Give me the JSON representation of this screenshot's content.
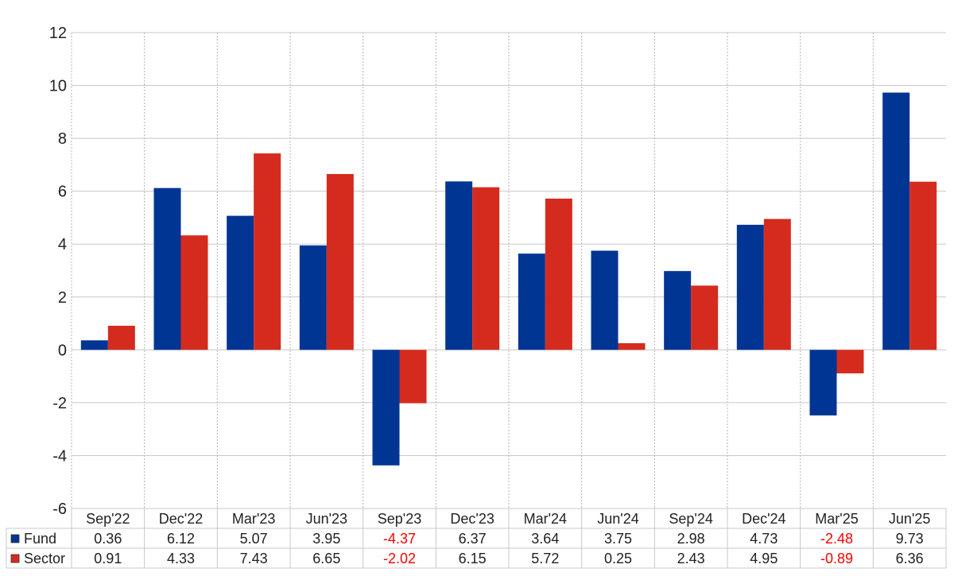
{
  "chart_data": {
    "type": "bar",
    "title": "",
    "xlabel": "",
    "ylabel": "",
    "ylim": [
      -6,
      12
    ],
    "y_ticks": [
      -6,
      -4,
      -2,
      0,
      2,
      4,
      6,
      8,
      10,
      12
    ],
    "grid": true,
    "legend": "table-left",
    "categories": [
      "Sep'22",
      "Dec'22",
      "Mar'23",
      "Jun'23",
      "Sep'23",
      "Dec'23",
      "Mar'24",
      "Jun'24",
      "Sep'24",
      "Dec'24",
      "Mar'25",
      "Jun'25"
    ],
    "series": [
      {
        "name": "Fund",
        "color": "#003594",
        "values": [
          0.36,
          6.12,
          5.07,
          3.95,
          -4.37,
          6.37,
          3.64,
          3.75,
          2.98,
          4.73,
          -2.48,
          9.73
        ],
        "labels": [
          "0.36",
          "6.12",
          "5.07",
          "3.95",
          "-4.37",
          "6.37",
          "3.64",
          "3.75",
          "2.98",
          "4.73",
          "-2.48",
          "9.73"
        ]
      },
      {
        "name": "Sector",
        "color": "#d52b1e",
        "values": [
          0.91,
          4.33,
          7.43,
          6.65,
          -2.02,
          6.15,
          5.72,
          0.25,
          2.43,
          4.95,
          -0.89,
          6.36
        ],
        "labels": [
          "0.91",
          "4.33",
          "7.43",
          "6.65",
          "-2.02",
          "6.15",
          "5.72",
          "0.25",
          "2.43",
          "4.95",
          "-0.89",
          "6.36"
        ]
      }
    ],
    "negative_value_color": "#ff0000"
  }
}
